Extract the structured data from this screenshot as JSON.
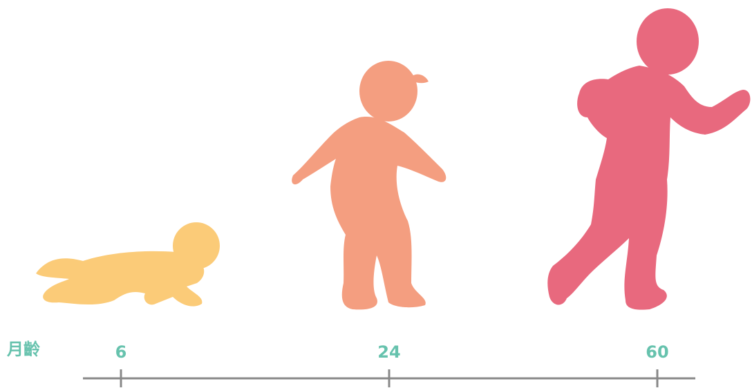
{
  "axis_label": "月齡",
  "ticks": [
    6,
    24,
    60
  ]
}
